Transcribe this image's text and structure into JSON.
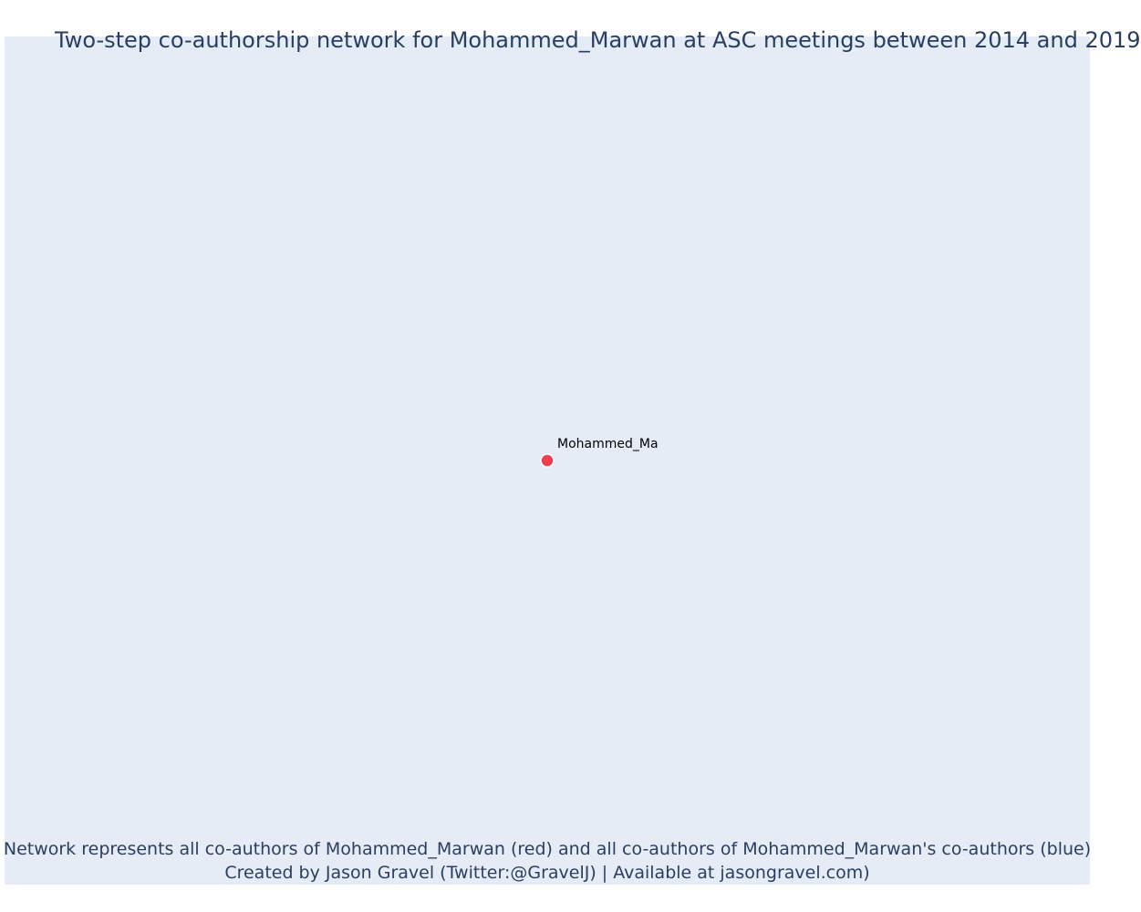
{
  "title": "Two-step co-authorship network for Mohammed_Marwan at ASC meetings between 2014 and 2019",
  "chart_data": {
    "type": "scatter",
    "title": "Two-step co-authorship network for Mohammed_Marwan at ASC meetings between 2014 and 2019",
    "xlabel": "",
    "ylabel": "",
    "grid": false,
    "nodes": [
      {
        "label": "Mohammed_Ma",
        "x": 0,
        "y": 0,
        "color": "#ef4050",
        "role": "focal"
      }
    ],
    "edges": []
  },
  "annotations": {
    "line1": "Network represents all co-authors of Mohammed_Marwan (red) and all co-authors of Mohammed_Marwan's co-authors (blue)",
    "line2": "Created by Jason Gravel (Twitter:@GravelJ) | Available at jasongravel.com)"
  },
  "colors": {
    "plot_background": "#e5ecf6",
    "text": "#2a3f5f",
    "focal_node": "#ef4050",
    "coauthor_node": "#636efa"
  }
}
